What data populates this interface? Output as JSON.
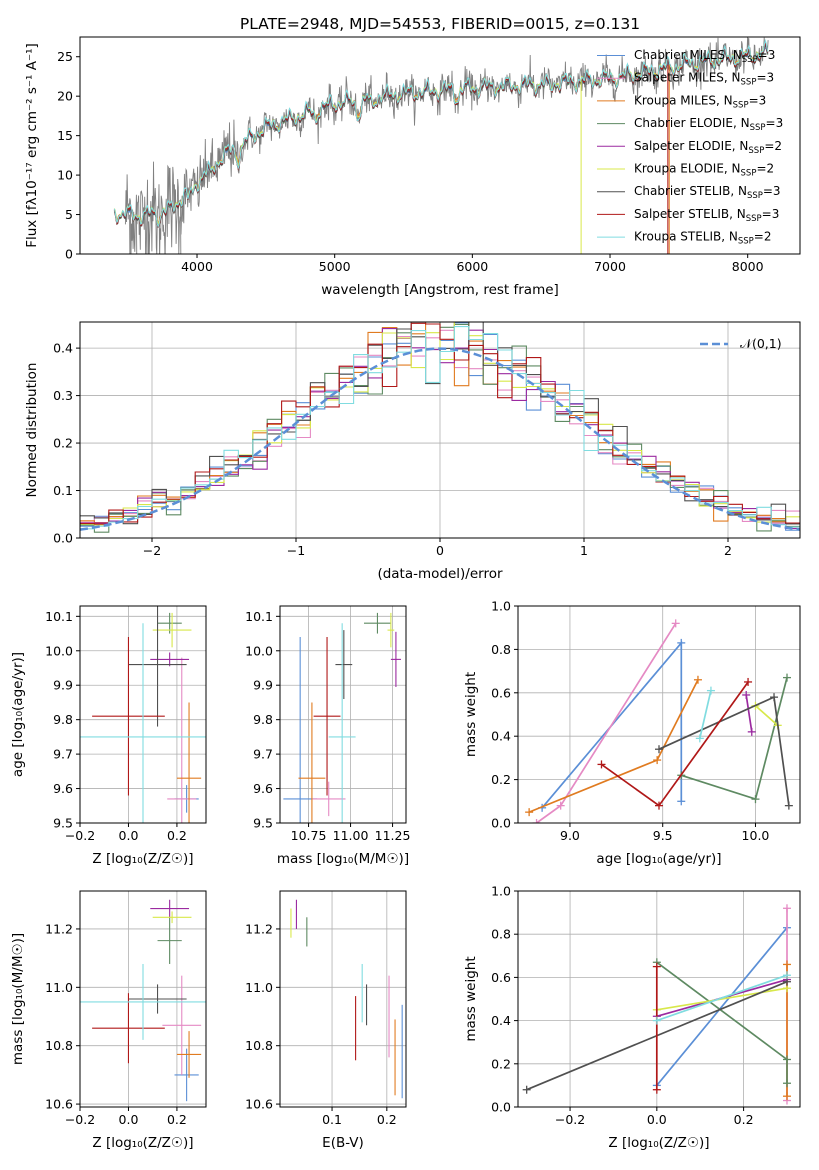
{
  "figure_title": "PLATE=2948, MJD=54553, FIBERID=0015, z=0.131",
  "colors": {
    "Chabrier MILES": "#5b8fd6",
    "Salpeter MILES": "#e58ac4",
    "Kroupa MILES": "#e07b20",
    "Chabrier ELODIE": "#5e8a62",
    "Salpeter ELODIE": "#9b2aa0",
    "Kroupa ELODIE": "#d8e84a",
    "Chabrier STELIB": "#505050",
    "Salpeter STELIB": "#b01818",
    "Kroupa STELIB": "#80dce0",
    "data": "#808080"
  },
  "chart_data": [
    {
      "id": "spectrum",
      "type": "line",
      "title": "PLATE=2948, MJD=54553, FIBERID=0015, z=0.131",
      "xlabel": "wavelength [Angstrom, rest frame]",
      "ylabel": "Flux [fλ10⁻¹⁷ erg cm⁻² s⁻¹ A⁻¹]",
      "xlim": [
        3150,
        8380
      ],
      "ylim": [
        0,
        27.5
      ],
      "xticks": [
        4000,
        5000,
        6000,
        7000,
        8000
      ],
      "yticks": [
        0,
        5,
        10,
        15,
        20,
        25
      ],
      "legend_position": "right",
      "legend": [
        "Chabrier MILES, N_SSP=3",
        "Salpeter MILES, N_SSP=3",
        "Kroupa MILES, N_SSP=3",
        "Chabrier ELODIE, N_SSP=3",
        "Salpeter ELODIE, N_SSP=2",
        "Kroupa ELODIE, N_SSP=2",
        "Chabrier STELIB, N_SSP=3",
        "Salpeter STELIB, N_SSP=3",
        "Kroupa STELIB, N_SSP=2"
      ],
      "continuum": {
        "x": [
          3400,
          3600,
          3800,
          4000,
          4200,
          4500,
          5000,
          5500,
          6000,
          6500,
          7000,
          7200,
          7600,
          8000,
          8150
        ],
        "y": [
          5.2,
          4.8,
          5.5,
          9.0,
          12.5,
          16.0,
          19.0,
          20.3,
          21.0,
          21.5,
          22.2,
          22.8,
          24.2,
          25.0,
          25.5
        ]
      },
      "model_range": [
        3400,
        8150
      ],
      "data_range": [
        3480,
        8150
      ]
    },
    {
      "id": "residuals",
      "type": "histogram",
      "xlabel": "(data-model)/error",
      "ylabel": "Normed distribution",
      "xlim": [
        -2.5,
        2.5
      ],
      "ylim": [
        0,
        0.455
      ],
      "xticks": [
        -2,
        -1,
        0,
        1,
        2
      ],
      "yticks": [
        0.0,
        0.1,
        0.2,
        0.3,
        0.4
      ],
      "grid": true,
      "bins": 50,
      "reference": {
        "label": "𝒩(0,1)",
        "mean": 0,
        "sigma": 1
      },
      "legend_position": "top-right"
    },
    {
      "id": "age_vs_Z",
      "type": "errorbar",
      "xlabel": "Z [log₁₀(Z/Z☉)]",
      "ylabel": "age  [log₁₀(age/yr)]",
      "xlim": [
        -0.2,
        0.32
      ],
      "ylim": [
        9.5,
        10.13
      ],
      "xticks": [
        -0.2,
        0.0,
        0.2
      ],
      "yticks": [
        9.5,
        9.6,
        9.7,
        9.8,
        9.9,
        10.0,
        10.1
      ],
      "grid": true,
      "points": [
        {
          "model": "Chabrier MILES",
          "x": 0.24,
          "xerr": 0.05,
          "y": 9.57,
          "yerr": 0.04
        },
        {
          "model": "Salpeter MILES",
          "x": 0.22,
          "xerr": 0.06,
          "y": 9.57,
          "yerr": 0.41
        },
        {
          "model": "Kroupa MILES",
          "x": 0.25,
          "xerr": 0.05,
          "y": 9.63,
          "yerr": 0.22
        },
        {
          "model": "Chabrier ELODIE",
          "x": 0.17,
          "xerr": 0.05,
          "y": 10.08,
          "yerr": 0.03
        },
        {
          "model": "Salpeter ELODIE",
          "x": 0.17,
          "xerr": 0.08,
          "y": 9.975,
          "yerr": 0.02
        },
        {
          "model": "Kroupa ELODIE",
          "x": 0.18,
          "xerr": 0.08,
          "y": 10.06,
          "yerr": 0.05
        },
        {
          "model": "Chabrier STELIB",
          "x": 0.12,
          "xerr": 0.12,
          "y": 9.96,
          "yerr": 0.18
        },
        {
          "model": "Salpeter STELIB",
          "x": 0.0,
          "xerr": 0.15,
          "y": 9.81,
          "yerr": 0.23
        },
        {
          "model": "Kroupa STELIB",
          "x": 0.06,
          "xerr": 0.26,
          "y": 9.75,
          "yerr": 0.33
        }
      ]
    },
    {
      "id": "age_vs_mass",
      "type": "errorbar",
      "xlabel": "mass [log₁₀(M/M☉)]",
      "xlim": [
        10.58,
        11.33
      ],
      "ylim": [
        9.5,
        10.13
      ],
      "xticks": [
        10.75,
        11.0,
        11.25
      ],
      "xtick_labels": [
        "10.75",
        "11.00",
        "11.25"
      ],
      "yticks": [
        9.5,
        9.6,
        9.7,
        9.8,
        9.9,
        10.0,
        10.1
      ],
      "grid": true,
      "points": [
        {
          "model": "Chabrier MILES",
          "x": 10.7,
          "xerr": 0.1,
          "y": 9.57,
          "yerr": 0.47
        },
        {
          "model": "Salpeter MILES",
          "x": 10.87,
          "xerr": 0.1,
          "y": 9.57,
          "yerr": 0.05
        },
        {
          "model": "Kroupa MILES",
          "x": 10.77,
          "xerr": 0.08,
          "y": 9.63,
          "yerr": 0.22
        },
        {
          "model": "Chabrier ELODIE",
          "x": 11.16,
          "xerr": 0.08,
          "y": 10.08,
          "yerr": 0.03
        },
        {
          "model": "Salpeter ELODIE",
          "x": 11.27,
          "xerr": 0.03,
          "y": 9.975,
          "yerr": 0.08
        },
        {
          "model": "Kroupa ELODIE",
          "x": 11.24,
          "xerr": 0.02,
          "y": 10.06,
          "yerr": 0.05
        },
        {
          "model": "Chabrier STELIB",
          "x": 10.96,
          "xerr": 0.05,
          "y": 9.96,
          "yerr": 0.1
        },
        {
          "model": "Salpeter STELIB",
          "x": 10.86,
          "xerr": 0.08,
          "y": 9.81,
          "yerr": 0.23
        },
        {
          "model": "Kroupa STELIB",
          "x": 10.95,
          "xerr": 0.08,
          "y": 9.75,
          "yerr": 0.33
        }
      ]
    },
    {
      "id": "weight_vs_age",
      "type": "line",
      "xlabel": "age  [log₁₀(age/yr)]",
      "ylabel": "mass weight",
      "xlim": [
        8.72,
        10.24
      ],
      "ylim": [
        0,
        1.0
      ],
      "xticks": [
        9.0,
        9.5,
        10.0
      ],
      "yticks": [
        0.0,
        0.2,
        0.4,
        0.6,
        0.8,
        1.0
      ],
      "grid": true,
      "series": [
        {
          "model": "Chabrier MILES",
          "x": [
            8.85,
            9.6,
            9.6
          ],
          "y": [
            0.07,
            0.83,
            0.1
          ]
        },
        {
          "model": "Salpeter MILES",
          "x": [
            8.82,
            8.95,
            9.57
          ],
          "y": [
            0.0,
            0.08,
            0.92
          ]
        },
        {
          "model": "Kroupa MILES",
          "x": [
            8.78,
            9.47,
            9.69
          ],
          "y": [
            0.05,
            0.29,
            0.66
          ]
        },
        {
          "model": "Chabrier ELODIE",
          "x": [
            9.6,
            10.0,
            10.17
          ],
          "y": [
            0.22,
            0.11,
            0.67
          ]
        },
        {
          "model": "Salpeter ELODIE",
          "x": [
            9.95,
            9.98
          ],
          "y": [
            0.59,
            0.42
          ]
        },
        {
          "model": "Kroupa ELODIE",
          "x": [
            10.0,
            10.12
          ],
          "y": [
            0.54,
            0.45
          ]
        },
        {
          "model": "Chabrier STELIB",
          "x": [
            9.48,
            10.1,
            10.18
          ],
          "y": [
            0.34,
            0.58,
            0.08
          ]
        },
        {
          "model": "Salpeter STELIB",
          "x": [
            9.17,
            9.48,
            9.96
          ],
          "y": [
            0.27,
            0.08,
            0.65
          ]
        },
        {
          "model": "Kroupa STELIB",
          "x": [
            9.7,
            9.76
          ],
          "y": [
            0.39,
            0.61
          ]
        }
      ]
    },
    {
      "id": "mass_vs_Z",
      "type": "errorbar",
      "xlabel": "Z [log₁₀(Z/Z☉)]",
      "ylabel": "mass [log₁₀(M/M☉)]",
      "xlim": [
        -0.2,
        0.32
      ],
      "ylim": [
        10.59,
        11.33
      ],
      "xticks": [
        -0.2,
        0.0,
        0.2
      ],
      "yticks": [
        10.6,
        10.8,
        11.0,
        11.2
      ],
      "grid": true,
      "points": [
        {
          "model": "Chabrier MILES",
          "x": 0.24,
          "xerr": 0.05,
          "y": 10.7,
          "yerr": 0.09
        },
        {
          "model": "Salpeter MILES",
          "x": 0.22,
          "xerr": 0.08,
          "y": 10.87,
          "yerr": 0.17
        },
        {
          "model": "Kroupa MILES",
          "x": 0.25,
          "xerr": 0.05,
          "y": 10.77,
          "yerr": 0.08
        },
        {
          "model": "Chabrier ELODIE",
          "x": 0.17,
          "xerr": 0.05,
          "y": 11.16,
          "yerr": 0.08
        },
        {
          "model": "Salpeter ELODIE",
          "x": 0.17,
          "xerr": 0.08,
          "y": 11.27,
          "yerr": 0.03
        },
        {
          "model": "Kroupa ELODIE",
          "x": 0.18,
          "xerr": 0.08,
          "y": 11.24,
          "yerr": 0.02
        },
        {
          "model": "Chabrier STELIB",
          "x": 0.12,
          "xerr": 0.12,
          "y": 10.96,
          "yerr": 0.05
        },
        {
          "model": "Salpeter STELIB",
          "x": 0.0,
          "xerr": 0.15,
          "y": 10.86,
          "yerr": 0.12
        },
        {
          "model": "Kroupa STELIB",
          "x": 0.06,
          "xerr": 0.26,
          "y": 10.95,
          "yerr": 0.13
        }
      ]
    },
    {
      "id": "mass_vs_ebv",
      "type": "errorbar",
      "xlabel": "E(B-V)",
      "xlim": [
        0.005,
        0.235
      ],
      "ylim": [
        10.59,
        11.33
      ],
      "xticks": [
        0.1,
        0.2
      ],
      "yticks": [
        10.6,
        10.8,
        11.0,
        11.2
      ],
      "grid": true,
      "points": [
        {
          "model": "Chabrier MILES",
          "x": 0.228,
          "y": 10.78,
          "yerr": 0.16
        },
        {
          "model": "Salpeter MILES",
          "x": 0.204,
          "y": 10.9,
          "yerr": 0.14
        },
        {
          "model": "Kroupa MILES",
          "x": 0.215,
          "y": 10.76,
          "yerr": 0.13
        },
        {
          "model": "Chabrier ELODIE",
          "x": 0.054,
          "y": 11.19,
          "yerr": 0.05
        },
        {
          "model": "Salpeter ELODIE",
          "x": 0.035,
          "y": 11.25,
          "yerr": 0.05
        },
        {
          "model": "Kroupa ELODIE",
          "x": 0.025,
          "y": 11.22,
          "yerr": 0.05
        },
        {
          "model": "Chabrier STELIB",
          "x": 0.163,
          "y": 10.94,
          "yerr": 0.07
        },
        {
          "model": "Salpeter STELIB",
          "x": 0.143,
          "y": 10.86,
          "yerr": 0.11
        },
        {
          "model": "Kroupa STELIB",
          "x": 0.155,
          "y": 10.98,
          "yerr": 0.1
        }
      ]
    },
    {
      "id": "weight_vs_Z",
      "type": "line",
      "xlabel": "Z [log₁₀(Z/Z☉)]",
      "ylabel": "mass weight",
      "xlim": [
        -0.32,
        0.33
      ],
      "ylim": [
        0,
        1.0
      ],
      "xticks": [
        -0.2,
        0.0,
        0.2
      ],
      "yticks": [
        0.0,
        0.2,
        0.4,
        0.6,
        0.8,
        1.0
      ],
      "grid": true,
      "series": [
        {
          "model": "Chabrier MILES",
          "x": [
            0.0,
            0.3
          ],
          "y": [
            0.1,
            0.83
          ]
        },
        {
          "model": "Salpeter MILES",
          "x": [
            0.3,
            0.3
          ],
          "y": [
            0.03,
            0.92
          ]
        },
        {
          "model": "Kroupa MILES",
          "x": [
            0.3,
            0.3
          ],
          "y": [
            0.05,
            0.66
          ]
        },
        {
          "model": "Chabrier ELODIE",
          "x": [
            0.0,
            0.3,
            0.3
          ],
          "y": [
            0.67,
            0.22,
            0.11
          ]
        },
        {
          "model": "Salpeter ELODIE",
          "x": [
            0.0,
            0.3
          ],
          "y": [
            0.42,
            0.59
          ]
        },
        {
          "model": "Kroupa ELODIE",
          "x": [
            0.0,
            0.3
          ],
          "y": [
            0.45,
            0.55
          ]
        },
        {
          "model": "Chabrier STELIB",
          "x": [
            -0.3,
            0.3
          ],
          "y": [
            0.08,
            0.58
          ]
        },
        {
          "model": "Salpeter STELIB",
          "x": [
            0.0,
            0.0
          ],
          "y": [
            0.08,
            0.65
          ]
        },
        {
          "model": "Kroupa STELIB",
          "x": [
            0.0,
            0.3
          ],
          "y": [
            0.4,
            0.61
          ]
        }
      ]
    }
  ]
}
